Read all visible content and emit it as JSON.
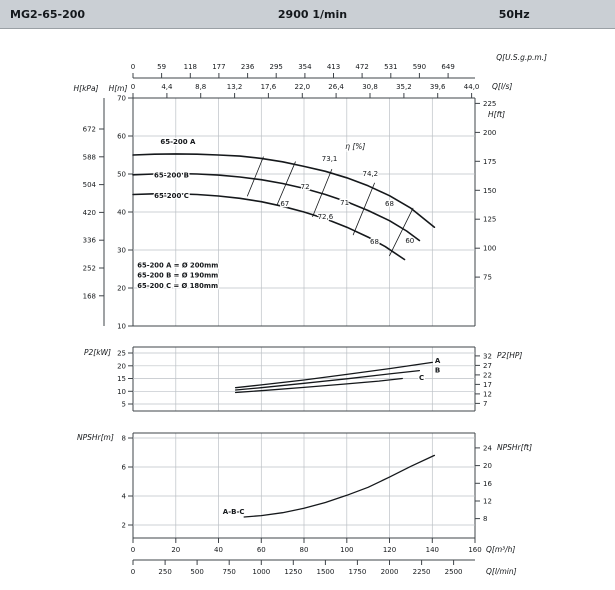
{
  "header": {
    "model": "MG2-65-200",
    "speed": "2900 1/min",
    "frequency": "50Hz"
  },
  "chart_data": {
    "type": "line",
    "title": "MG2-65-200 pump performance curves, 2900 1/min, 50Hz",
    "q_axis_m3h": {
      "label": "Q[m³/h]",
      "ticks": [
        0,
        20,
        40,
        60,
        80,
        100,
        120,
        140,
        160
      ],
      "range": [
        0,
        160
      ]
    },
    "q_axis_lmin": {
      "label": "Q[l/min]",
      "ticks": [
        0,
        250,
        500,
        750,
        1000,
        1250,
        1500,
        1750,
        2000,
        2250,
        2500
      ],
      "m3h_per_unit": 0.06
    },
    "q_axis_usgpm": {
      "label": "Q[U.S.g.p.m.]",
      "ticks": [
        0,
        59,
        118,
        177,
        236,
        295,
        354,
        413,
        472,
        531,
        590,
        649
      ],
      "m3h_per_unit": 0.22712
    },
    "q_axis_ls": {
      "label": "Q[l/s]",
      "tick_labels": [
        "0",
        "4,4",
        "8,8",
        "13,2",
        "17,6",
        "22,0",
        "26,4",
        "30,8",
        "35,2",
        "39,6",
        "44,0"
      ],
      "tick_values": [
        0,
        4.4,
        8.8,
        13.2,
        17.6,
        22,
        26.4,
        30.8,
        35.2,
        39.6,
        44
      ],
      "m3h_per_unit": 3.6
    },
    "h_axis_m": {
      "label": "H[m]",
      "ticks": [
        70,
        60,
        50,
        40,
        30,
        20,
        10
      ],
      "range": [
        10,
        70
      ]
    },
    "h_axis_kpa": {
      "label": "H[kPa]",
      "ticks": [
        672,
        588,
        504,
        420,
        336,
        252,
        168
      ]
    },
    "h_axis_ft": {
      "label": "H[ft]",
      "ticks": [
        225,
        200,
        175,
        150,
        125,
        100,
        75
      ],
      "m_per_unit": 0.3048
    },
    "head_curves": {
      "series": [
        {
          "name": "65-200 A",
          "impeller": "Ø 200mm",
          "label_at": [
            21,
            57.9
          ],
          "points": [
            [
              0,
              55
            ],
            [
              10,
              55.2
            ],
            [
              20,
              55.3
            ],
            [
              30,
              55.2
            ],
            [
              40,
              55
            ],
            [
              50,
              54.7
            ],
            [
              60,
              54.1
            ],
            [
              70,
              53.2
            ],
            [
              80,
              52
            ],
            [
              90,
              50.7
            ],
            [
              100,
              49
            ],
            [
              110,
              46.9
            ],
            [
              120,
              44.3
            ],
            [
              130,
              41
            ],
            [
              141,
              36
            ]
          ]
        },
        {
          "name": "65-200 B",
          "impeller": "Ø 190mm",
          "label_at": [
            18,
            49.1
          ],
          "points": [
            [
              0,
              49.8
            ],
            [
              10,
              50
            ],
            [
              20,
              50.1
            ],
            [
              30,
              50
            ],
            [
              40,
              49.7
            ],
            [
              50,
              49.2
            ],
            [
              60,
              48.5
            ],
            [
              70,
              47.5
            ],
            [
              80,
              46.2
            ],
            [
              90,
              44.6
            ],
            [
              100,
              42.7
            ],
            [
              110,
              40.4
            ],
            [
              120,
              37.7
            ],
            [
              128,
              35
            ],
            [
              134,
              32.5
            ]
          ]
        },
        {
          "name": "65-200 C",
          "impeller": "Ø 180mm",
          "label_at": [
            18,
            43.7
          ],
          "points": [
            [
              0,
              44.6
            ],
            [
              10,
              44.8
            ],
            [
              20,
              44.8
            ],
            [
              30,
              44.6
            ],
            [
              40,
              44.2
            ],
            [
              50,
              43.6
            ],
            [
              60,
              42.7
            ],
            [
              70,
              41.5
            ],
            [
              80,
              40
            ],
            [
              90,
              38.2
            ],
            [
              100,
              36
            ],
            [
              110,
              33.4
            ],
            [
              118,
              30.9
            ],
            [
              127,
              27.5
            ]
          ]
        }
      ],
      "legend": [
        {
          "text": "65-200 A = Ø 200mm",
          "at": [
            2,
            25.4
          ]
        },
        {
          "text": "65-200 B = Ø 190mm",
          "at": [
            2,
            22.7
          ]
        },
        {
          "text": "65-200 C = Ø 180mm",
          "at": [
            2,
            20.0
          ]
        }
      ]
    },
    "efficiency": {
      "axis_label": "η [%]",
      "axis_label_at": [
        104,
        56.6
      ],
      "markers": [
        {
          "text": "73,1",
          "at": [
            92,
            53.4
          ]
        },
        {
          "text": "74,2",
          "at": [
            111,
            49.5
          ]
        },
        {
          "text": "72",
          "at": [
            80.5,
            46.1
          ]
        },
        {
          "text": "67",
          "at": [
            71,
            41.6
          ]
        },
        {
          "text": "71",
          "at": [
            99,
            41.8
          ]
        },
        {
          "text": "68",
          "at": [
            120,
            41.6
          ]
        },
        {
          "text": "72,6",
          "at": [
            90,
            38.2
          ]
        },
        {
          "text": "68",
          "at": [
            113,
            31.6
          ]
        },
        {
          "text": "60",
          "at": [
            129.5,
            31.8
          ]
        }
      ],
      "iso_lines": [
        [
          [
            53.5,
            44.2
          ],
          [
            61,
            54.5
          ]
        ],
        [
          [
            67.5,
            42
          ],
          [
            76,
            53.2
          ]
        ],
        [
          [
            84,
            38.8
          ],
          [
            93,
            51.2
          ]
        ],
        [
          [
            103,
            34
          ],
          [
            113,
            47.6
          ]
        ],
        [
          [
            120,
            28.5
          ],
          [
            131,
            41
          ]
        ]
      ]
    },
    "p2_chart": {
      "left_label": "P2[kW]",
      "right_label": "P2[HP]",
      "kw_ticks": [
        25,
        20,
        15,
        10,
        5
      ],
      "kw_range": [
        5,
        25
      ],
      "hp_ticks": [
        32,
        27,
        22,
        17,
        12,
        7
      ],
      "kw_per_hp": 0.7457,
      "series": [
        {
          "name": "A",
          "label_at": [
            142.5,
            21.8
          ],
          "points": [
            [
              48,
              11.4
            ],
            [
              60,
              12.5
            ],
            [
              80,
              14.4
            ],
            [
              100,
              16.6
            ],
            [
              120,
              18.9
            ],
            [
              130,
              20.1
            ],
            [
              140,
              21.3
            ]
          ]
        },
        {
          "name": "B",
          "label_at": [
            142.5,
            18.2
          ],
          "points": [
            [
              48,
              10.5
            ],
            [
              60,
              11.4
            ],
            [
              80,
              13.1
            ],
            [
              100,
              14.9
            ],
            [
              120,
              16.8
            ],
            [
              134,
              18.1
            ]
          ]
        },
        {
          "name": "C",
          "label_at": [
            135,
            15.1
          ],
          "points": [
            [
              48,
              9.5
            ],
            [
              60,
              10.2
            ],
            [
              80,
              11.5
            ],
            [
              100,
              12.9
            ],
            [
              115,
              14
            ],
            [
              126,
              15
            ]
          ]
        }
      ]
    },
    "npsh_chart": {
      "left_label": "NPSHr[m]",
      "right_label": "NPSHr[ft]",
      "m_ticks": [
        8,
        6,
        4,
        2
      ],
      "m_range": [
        2,
        8
      ],
      "ft_ticks": [
        24,
        20,
        16,
        12,
        8
      ],
      "m_per_ft": 0.3048,
      "series": [
        {
          "name": "A-B-C",
          "label_at": [
            42,
            2.9
          ],
          "points": [
            [
              52,
              2.55
            ],
            [
              60,
              2.65
            ],
            [
              70,
              2.85
            ],
            [
              80,
              3.15
            ],
            [
              90,
              3.55
            ],
            [
              100,
              4.05
            ],
            [
              110,
              4.6
            ],
            [
              120,
              5.3
            ],
            [
              130,
              6.05
            ],
            [
              141,
              6.8
            ]
          ]
        }
      ]
    }
  }
}
